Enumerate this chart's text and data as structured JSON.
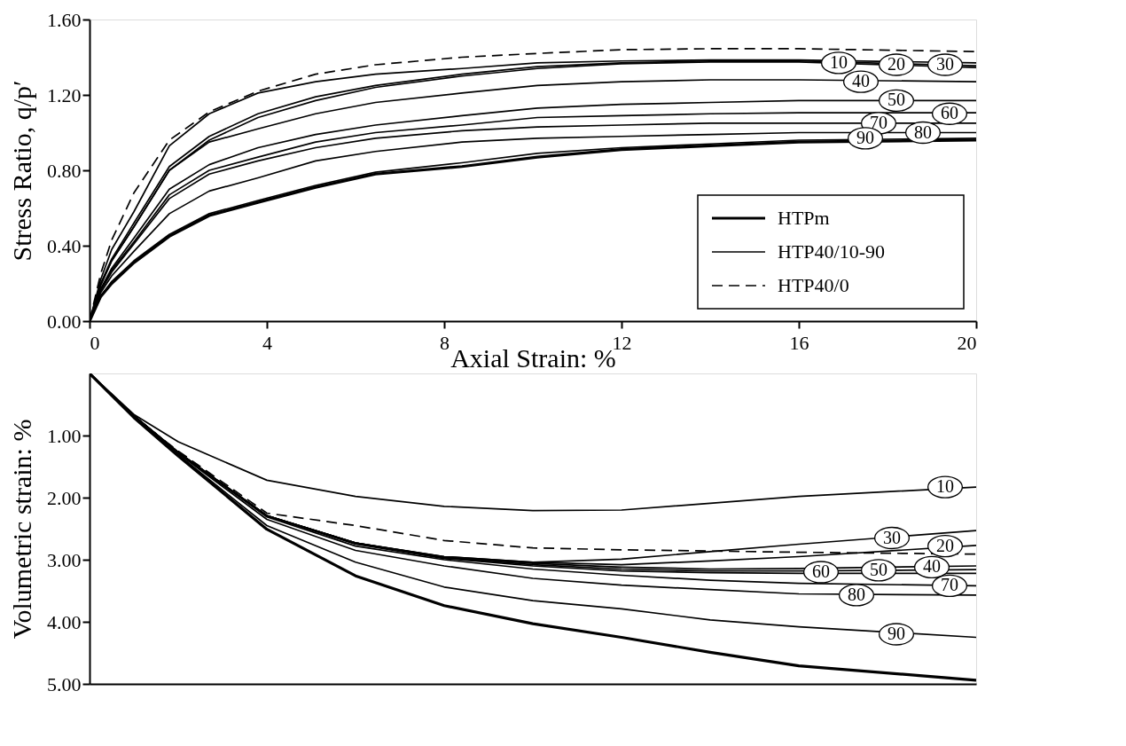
{
  "chart_data": [
    {
      "type": "line",
      "xlabel": "Axial Strain: %",
      "ylabel": "Stress Ratio, q/p′",
      "xlim": [
        0,
        20
      ],
      "xticks": [
        0,
        4,
        8,
        12,
        16,
        20
      ],
      "ylim": [
        0,
        1.6
      ],
      "yticks": [
        {
          "value": 0,
          "label": "0.00"
        },
        {
          "value": 0.4,
          "label": "0.40"
        },
        {
          "value": 0.8,
          "label": "0.80"
        },
        {
          "value": 1.2,
          "label": "1.20"
        },
        {
          "value": 1.6,
          "label": "1.60"
        }
      ],
      "grid": false,
      "legend": "bottom right",
      "line_style": "solid",
      "x": [
        0,
        0.25,
        0.5,
        1,
        1.8,
        2.7,
        3.8,
        5.1,
        6.45,
        8.4,
        10.1,
        12,
        14,
        16,
        20
      ],
      "series": [
        {
          "name": "HTPm",
          "color": "#000000",
          "values": [
            0,
            0.13,
            0.2,
            0.31,
            0.45,
            0.56,
            0.63,
            0.71,
            0.78,
            0.82,
            0.87,
            0.91,
            0.93,
            0.95,
            0.96
          ]
        },
        {
          "name": "HTP40/10-90",
          "color": "#000000",
          "values": [
            0,
            0.22,
            0.38,
            0.58,
            0.93,
            1.1,
            1.21,
            1.27,
            1.31,
            1.34,
            1.37,
            1.38,
            1.385,
            1.385,
            1.37
          ]
        },
        {
          "color": "#000000",
          "values": [
            0,
            0.2,
            0.33,
            0.52,
            0.82,
            0.98,
            1.1,
            1.19,
            1.25,
            1.31,
            1.35,
            1.37,
            1.38,
            1.38,
            1.355
          ]
        },
        {
          "color": "#000000",
          "values": [
            0,
            0.19,
            0.32,
            0.5,
            0.8,
            0.96,
            1.08,
            1.17,
            1.24,
            1.3,
            1.34,
            1.365,
            1.375,
            1.375,
            1.345
          ]
        },
        {
          "color": "#000000",
          "values": [
            0,
            0.19,
            0.32,
            0.5,
            0.8,
            0.95,
            1.02,
            1.1,
            1.16,
            1.21,
            1.25,
            1.27,
            1.28,
            1.28,
            1.27
          ]
        },
        {
          "color": "#000000",
          "values": [
            0,
            0.17,
            0.28,
            0.44,
            0.7,
            0.83,
            0.92,
            0.99,
            1.04,
            1.09,
            1.13,
            1.15,
            1.16,
            1.17,
            1.17
          ]
        },
        {
          "color": "#000000",
          "values": [
            0,
            0.17,
            0.27,
            0.42,
            0.67,
            0.8,
            0.87,
            0.95,
            1.0,
            1.04,
            1.08,
            1.09,
            1.1,
            1.105,
            1.105
          ]
        },
        {
          "color": "#000000",
          "values": [
            0,
            0.16,
            0.26,
            0.41,
            0.65,
            0.78,
            0.85,
            0.92,
            0.97,
            1.01,
            1.03,
            1.04,
            1.05,
            1.05,
            1.05
          ]
        },
        {
          "color": "#000000",
          "values": [
            0,
            0.15,
            0.24,
            0.37,
            0.57,
            0.69,
            0.76,
            0.85,
            0.9,
            0.95,
            0.97,
            0.98,
            0.99,
            1.0,
            1.0
          ]
        },
        {
          "color": "#000000",
          "values": [
            0,
            0.13,
            0.21,
            0.32,
            0.46,
            0.57,
            0.64,
            0.72,
            0.79,
            0.84,
            0.89,
            0.92,
            0.94,
            0.96,
            0.97
          ]
        },
        {
          "name": "HTP40/0",
          "color": "#000000",
          "line_style": "dashed",
          "values": [
            0,
            0.25,
            0.43,
            0.68,
            0.96,
            1.11,
            1.22,
            1.31,
            1.36,
            1.4,
            1.42,
            1.44,
            1.445,
            1.445,
            1.43
          ]
        }
      ],
      "annotations": [
        {
          "text": "10",
          "x": 16.9,
          "y": 1.37
        },
        {
          "text": "20",
          "x": 18.2,
          "y": 1.36
        },
        {
          "text": "30",
          "x": 19.3,
          "y": 1.36
        },
        {
          "text": "40",
          "x": 17.4,
          "y": 1.27
        },
        {
          "text": "50",
          "x": 18.2,
          "y": 1.17
        },
        {
          "text": "60",
          "x": 19.4,
          "y": 1.1
        },
        {
          "text": "70",
          "x": 17.8,
          "y": 1.05
        },
        {
          "text": "80",
          "x": 18.8,
          "y": 1.0
        },
        {
          "text": "90",
          "x": 17.5,
          "y": 0.97
        }
      ]
    },
    {
      "type": "line",
      "ylabel": "Volumetric strain: %",
      "xlim": [
        0,
        20
      ],
      "xticks": [
        0,
        4,
        8,
        12,
        16,
        20
      ],
      "ylim": [
        5,
        0
      ],
      "yticks": [
        {
          "value": 1,
          "label": "1.00"
        },
        {
          "value": 2,
          "label": "2.00"
        },
        {
          "value": 3,
          "label": "3.00"
        },
        {
          "value": 4,
          "label": "4.00"
        },
        {
          "value": 5,
          "label": "5.00"
        }
      ],
      "grid": false,
      "legend": false,
      "line_style": "solid",
      "tick_labels": "y",
      "x": [
        0,
        1,
        2,
        4,
        6,
        8,
        10,
        12,
        14,
        16,
        20
      ],
      "series": [
        {
          "color": "#000000",
          "values": [
            0,
            0.71,
            1.33,
            2.51,
            3.26,
            3.74,
            4.03,
            4.25,
            4.49,
            4.71,
            4.94
          ]
        },
        {
          "color": "#000000",
          "values": [
            0,
            0.66,
            1.1,
            1.72,
            1.98,
            2.14,
            2.21,
            2.2,
            2.09,
            1.98,
            1.83
          ]
        },
        {
          "color": "#000000",
          "values": [
            0,
            0.68,
            1.27,
            2.29,
            2.73,
            2.95,
            3.04,
            3.08,
            3.02,
            2.95,
            2.77
          ]
        },
        {
          "color": "#000000",
          "values": [
            0,
            0.68,
            1.27,
            2.29,
            2.73,
            2.95,
            3.04,
            2.99,
            2.87,
            2.75,
            2.53
          ]
        },
        {
          "color": "#000000",
          "values": [
            0,
            0.68,
            1.27,
            2.29,
            2.73,
            2.96,
            3.06,
            3.12,
            3.15,
            3.14,
            3.1
          ]
        },
        {
          "color": "#000000",
          "values": [
            0,
            0.68,
            1.27,
            2.29,
            2.73,
            2.97,
            3.08,
            3.15,
            3.18,
            3.18,
            3.16
          ]
        },
        {
          "color": "#000000",
          "values": [
            0,
            0.68,
            1.27,
            2.3,
            2.75,
            2.98,
            3.1,
            3.18,
            3.21,
            3.22,
            3.22
          ]
        },
        {
          "color": "#000000",
          "values": [
            0,
            0.68,
            1.28,
            2.31,
            2.78,
            3.0,
            3.15,
            3.25,
            3.33,
            3.38,
            3.42
          ]
        },
        {
          "color": "#000000",
          "values": [
            0,
            0.68,
            1.29,
            2.35,
            2.85,
            3.1,
            3.3,
            3.41,
            3.48,
            3.55,
            3.57
          ]
        },
        {
          "color": "#000000",
          "values": [
            0,
            0.69,
            1.31,
            2.45,
            3.04,
            3.44,
            3.66,
            3.79,
            3.97,
            4.08,
            4.25
          ]
        },
        {
          "color": "#000000",
          "line_style": "dashed",
          "values": [
            0,
            0.7,
            1.25,
            2.25,
            2.45,
            2.69,
            2.81,
            2.84,
            2.86,
            2.88,
            2.91
          ]
        }
      ],
      "annotations": [
        {
          "text": "10",
          "x": 19.3,
          "y": 1.83
        },
        {
          "text": "20",
          "x": 19.3,
          "y": 2.78
        },
        {
          "text": "30",
          "x": 18.1,
          "y": 2.65
        },
        {
          "text": "40",
          "x": 19.0,
          "y": 3.12
        },
        {
          "text": "50",
          "x": 17.8,
          "y": 3.17
        },
        {
          "text": "60",
          "x": 16.5,
          "y": 3.2
        },
        {
          "text": "70",
          "x": 19.4,
          "y": 3.42
        },
        {
          "text": "80",
          "x": 17.3,
          "y": 3.57
        },
        {
          "text": "90",
          "x": 18.2,
          "y": 4.2
        }
      ]
    }
  ]
}
